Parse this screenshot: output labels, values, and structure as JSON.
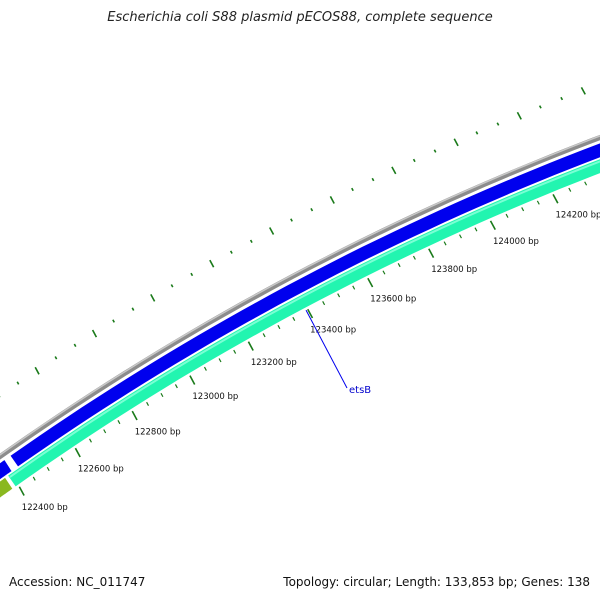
{
  "title": "Escherichia coli S88 plasmid pECOS88, complete sequence",
  "footer": {
    "accession": "Accession: NC_011747",
    "summary": "Topology: circular; Length: 133,853 bp; Genes: 138"
  },
  "ruler_labels": [
    "122400 bp",
    "122600 bp",
    "122800 bp",
    "123000 bp",
    "123200 bp",
    "123400 bp",
    "123600 bp",
    "123800 bp",
    "124000 bp",
    "124200 bp"
  ],
  "gene_label": "etsB",
  "colors": {
    "backbone": "#8c8c8c",
    "forward_gene": "#0000ee",
    "reverse_gene": "#22f5b0",
    "other_feature": "#8ab820",
    "ticks": "#1a7a1a",
    "label_line": "#0000ee",
    "label_text": "#0000cc"
  }
}
